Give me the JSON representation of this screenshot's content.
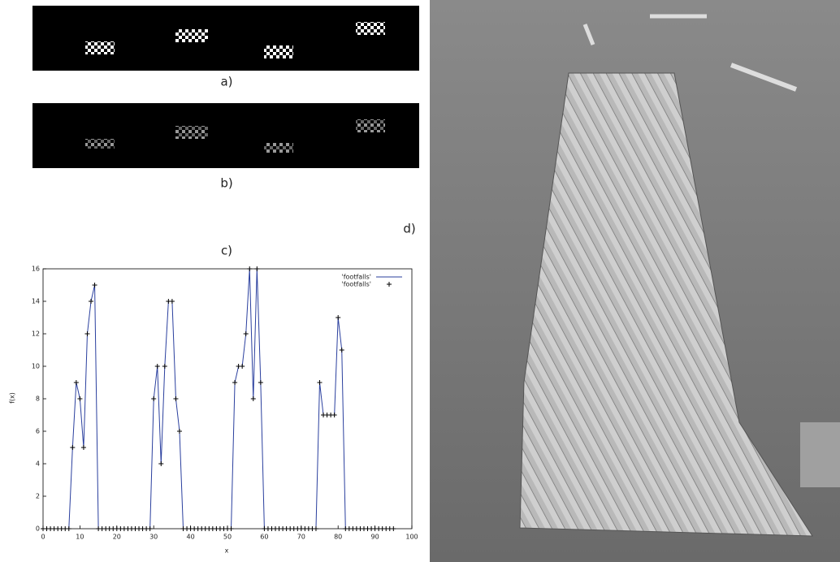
{
  "panels": {
    "a": "a)",
    "b": "b)",
    "c": "c)",
    "d": "d)"
  },
  "chart_data": {
    "type": "line",
    "xlabel": "x",
    "ylabel": "f(x)",
    "x": [
      0,
      1,
      2,
      3,
      4,
      5,
      6,
      7,
      8,
      9,
      10,
      11,
      12,
      13,
      14,
      15,
      16,
      17,
      18,
      19,
      20,
      21,
      22,
      23,
      24,
      25,
      26,
      27,
      28,
      29,
      30,
      31,
      32,
      33,
      34,
      35,
      36,
      37,
      38,
      39,
      40,
      41,
      42,
      43,
      44,
      45,
      46,
      47,
      48,
      49,
      50,
      51,
      52,
      53,
      54,
      55,
      56,
      57,
      58,
      59,
      60,
      61,
      62,
      63,
      64,
      65,
      66,
      67,
      68,
      69,
      70,
      71,
      72,
      73,
      74,
      75,
      76,
      77,
      78,
      79,
      80,
      81,
      82,
      83,
      84,
      85,
      86,
      87,
      88,
      89,
      90,
      91,
      92,
      93,
      94,
      95
    ],
    "series": [
      {
        "name": "'footfalls'",
        "style": "line",
        "color": "#2a3f9e",
        "values": [
          0,
          0,
          0,
          0,
          0,
          0,
          0,
          0,
          5,
          9,
          8,
          5,
          12,
          14,
          15,
          0,
          0,
          0,
          0,
          0,
          0,
          0,
          0,
          0,
          0,
          0,
          0,
          0,
          0,
          0,
          8,
          10,
          4,
          10,
          14,
          14,
          8,
          6,
          0,
          0,
          0,
          0,
          0,
          0,
          0,
          0,
          0,
          0,
          0,
          0,
          0,
          0,
          9,
          10,
          10,
          12,
          16,
          8,
          16,
          9,
          0,
          0,
          0,
          0,
          0,
          0,
          0,
          0,
          0,
          0,
          0,
          0,
          0,
          0,
          0,
          9,
          7,
          7,
          7,
          7,
          13,
          11,
          0,
          0,
          0,
          0,
          0,
          0,
          0,
          0,
          0,
          0,
          0,
          0,
          0,
          0
        ]
      },
      {
        "name": "'footfalls'",
        "style": "points",
        "color": "#000000",
        "values": [
          0,
          0,
          0,
          0,
          0,
          0,
          0,
          0,
          5,
          9,
          8,
          5,
          12,
          14,
          15,
          0,
          0,
          0,
          0,
          0,
          0,
          0,
          0,
          0,
          0,
          0,
          0,
          0,
          0,
          0,
          8,
          10,
          4,
          10,
          14,
          14,
          8,
          6,
          0,
          0,
          0,
          0,
          0,
          0,
          0,
          0,
          0,
          0,
          0,
          0,
          0,
          0,
          9,
          10,
          10,
          12,
          16,
          8,
          16,
          9,
          0,
          0,
          0,
          0,
          0,
          0,
          0,
          0,
          0,
          0,
          0,
          0,
          0,
          0,
          0,
          9,
          7,
          7,
          7,
          7,
          13,
          11,
          0,
          0,
          0,
          0,
          0,
          0,
          0,
          0,
          0,
          0,
          0,
          0,
          0,
          0
        ]
      }
    ],
    "xlim": [
      0,
      100
    ],
    "xticks": [
      0,
      10,
      20,
      30,
      40,
      50,
      60,
      70,
      80,
      90,
      100
    ],
    "ylim": [
      0,
      16
    ],
    "yticks": [
      0,
      2,
      4,
      6,
      8,
      10,
      12,
      14,
      16
    ],
    "legend": "upper right"
  }
}
